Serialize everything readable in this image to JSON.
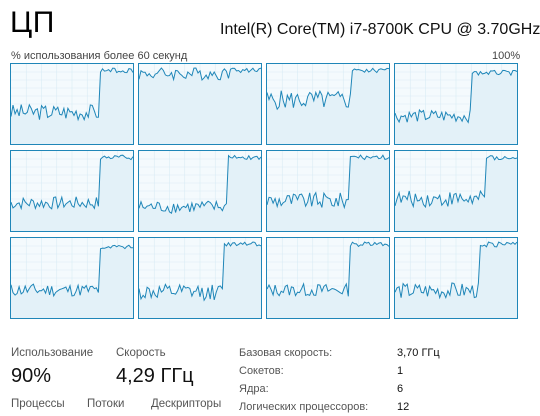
{
  "header": {
    "title": "ЦП",
    "cpu_name": "Intel(R) Core(TM) i7-8700K CPU @ 3.70GHz"
  },
  "graph": {
    "caption": "% использования более 60 секунд",
    "max_label": "100%",
    "line_color": "#1f86b8",
    "fill_color": "#f4fafd",
    "cores": [
      {
        "base": 0.4,
        "jump": 0.95,
        "jump_at": 0.72,
        "noise": 0.1
      },
      {
        "base": 0.88,
        "jump": 0.95,
        "jump_at": 0.75,
        "noise": 0.08
      },
      {
        "base": 0.55,
        "jump": 0.95,
        "jump_at": 0.7,
        "noise": 0.12
      },
      {
        "base": 0.35,
        "jump": 0.92,
        "jump_at": 0.62,
        "noise": 0.08
      },
      {
        "base": 0.35,
        "jump": 0.95,
        "jump_at": 0.73,
        "noise": 0.08
      },
      {
        "base": 0.3,
        "jump": 0.95,
        "jump_at": 0.72,
        "noise": 0.08
      },
      {
        "base": 0.38,
        "jump": 0.95,
        "jump_at": 0.68,
        "noise": 0.1
      },
      {
        "base": 0.4,
        "jump": 0.95,
        "jump_at": 0.75,
        "noise": 0.1
      },
      {
        "base": 0.35,
        "jump": 0.92,
        "jump_at": 0.72,
        "noise": 0.08
      },
      {
        "base": 0.32,
        "jump": 0.95,
        "jump_at": 0.7,
        "noise": 0.1
      },
      {
        "base": 0.35,
        "jump": 0.95,
        "jump_at": 0.68,
        "noise": 0.08
      },
      {
        "base": 0.34,
        "jump": 0.95,
        "jump_at": 0.7,
        "noise": 0.1
      }
    ]
  },
  "stats": {
    "usage_label": "Использование",
    "usage_value": "90%",
    "speed_label": "Скорость",
    "speed_value": "4,29 ГГц",
    "processes_label": "Процессы",
    "threads_label": "Потоки",
    "handles_label": "Дескрипторы"
  },
  "specs": [
    {
      "label": "Базовая скорость:",
      "value": "3,70 ГГц"
    },
    {
      "label": "Сокетов:",
      "value": "1"
    },
    {
      "label": "Ядра:",
      "value": "6"
    },
    {
      "label": "Логических процессоров:",
      "value": "12"
    }
  ]
}
